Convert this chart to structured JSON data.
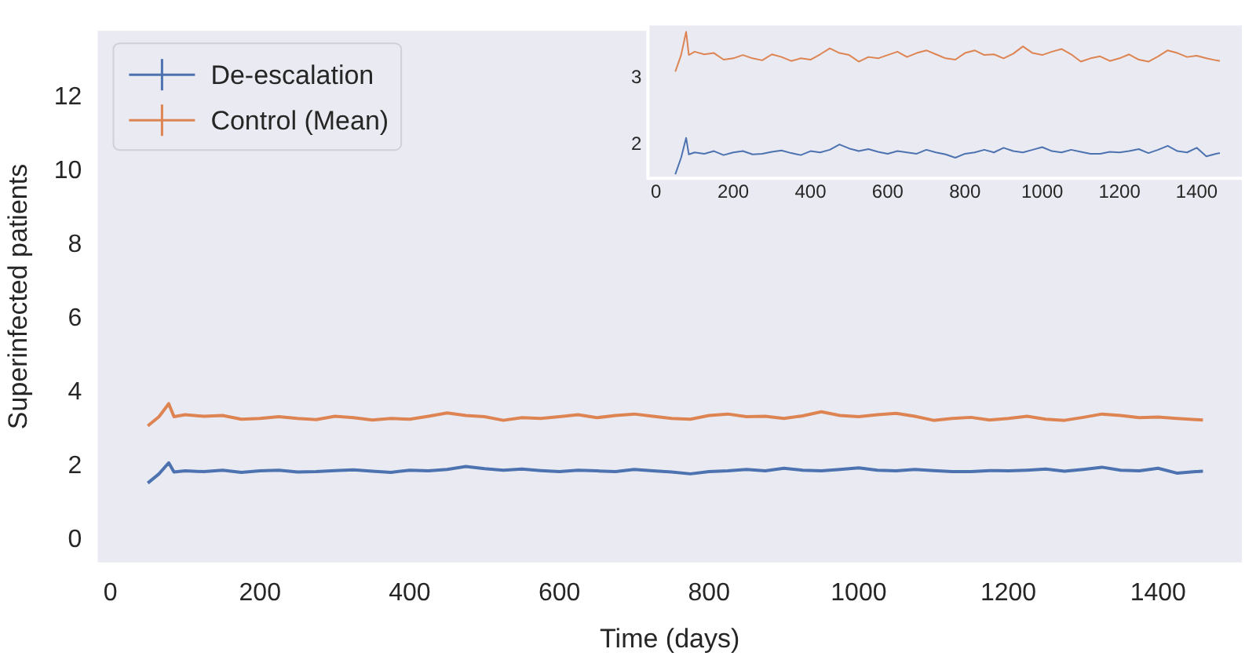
{
  "chart_data": [
    {
      "type": "line",
      "xlabel": "Time (days)",
      "ylabel": "Superinfected patients",
      "xlim": [
        -17,
        1512
      ],
      "ylim": [
        -0.6,
        13.8
      ],
      "xticks": [
        0,
        200,
        400,
        600,
        800,
        1000,
        1200,
        1400
      ],
      "yticks": [
        0,
        2,
        4,
        6,
        8,
        10,
        12
      ],
      "legend": "top left",
      "marker": "none",
      "line_style": "solid",
      "x": [
        50,
        65,
        78,
        85,
        100,
        125,
        150,
        175,
        200,
        225,
        250,
        275,
        300,
        325,
        350,
        375,
        400,
        425,
        450,
        475,
        500,
        525,
        550,
        575,
        600,
        625,
        650,
        675,
        700,
        725,
        750,
        775,
        800,
        825,
        850,
        875,
        900,
        925,
        950,
        975,
        1000,
        1025,
        1050,
        1075,
        1100,
        1125,
        1150,
        1175,
        1200,
        1225,
        1250,
        1275,
        1300,
        1325,
        1350,
        1375,
        1400,
        1425,
        1450,
        1460
      ],
      "series": [
        {
          "name": "De-escalation",
          "color": "#4c72b0",
          "values": [
            1.55,
            1.8,
            2.1,
            1.85,
            1.88,
            1.86,
            1.9,
            1.84,
            1.88,
            1.9,
            1.85,
            1.86,
            1.89,
            1.91,
            1.87,
            1.84,
            1.9,
            1.88,
            1.92,
            2.0,
            1.94,
            1.9,
            1.93,
            1.89,
            1.86,
            1.9,
            1.88,
            1.86,
            1.92,
            1.88,
            1.85,
            1.8,
            1.86,
            1.88,
            1.92,
            1.88,
            1.95,
            1.9,
            1.88,
            1.92,
            1.96,
            1.9,
            1.88,
            1.92,
            1.89,
            1.86,
            1.86,
            1.89,
            1.88,
            1.9,
            1.93,
            1.87,
            1.92,
            1.98,
            1.9,
            1.88,
            1.95,
            1.82,
            1.86,
            1.87
          ]
        },
        {
          "name": "Control (Mean)",
          "color": "#dd8452",
          "values": [
            3.1,
            3.35,
            3.7,
            3.35,
            3.4,
            3.36,
            3.38,
            3.28,
            3.3,
            3.35,
            3.3,
            3.27,
            3.36,
            3.32,
            3.26,
            3.3,
            3.28,
            3.36,
            3.45,
            3.38,
            3.35,
            3.25,
            3.32,
            3.3,
            3.35,
            3.4,
            3.32,
            3.38,
            3.42,
            3.36,
            3.3,
            3.28,
            3.38,
            3.42,
            3.35,
            3.36,
            3.3,
            3.37,
            3.48,
            3.38,
            3.35,
            3.4,
            3.44,
            3.36,
            3.25,
            3.3,
            3.33,
            3.26,
            3.3,
            3.36,
            3.28,
            3.25,
            3.33,
            3.42,
            3.38,
            3.32,
            3.34,
            3.3,
            3.27,
            3.26
          ]
        }
      ]
    },
    {
      "type": "line",
      "xlim": [
        -21,
        1521
      ],
      "ylim": [
        1.49,
        3.82
      ],
      "xticks": [
        0,
        200,
        400,
        600,
        800,
        1000,
        1200,
        1400
      ],
      "yticks": [
        2,
        3
      ],
      "marker": "none",
      "line_style": "solid",
      "x": [
        50,
        65,
        78,
        85,
        100,
        125,
        150,
        175,
        200,
        225,
        250,
        275,
        300,
        325,
        350,
        375,
        400,
        425,
        450,
        475,
        500,
        525,
        550,
        575,
        600,
        625,
        650,
        675,
        700,
        725,
        750,
        775,
        800,
        825,
        850,
        875,
        900,
        925,
        950,
        975,
        1000,
        1025,
        1050,
        1075,
        1100,
        1125,
        1150,
        1175,
        1200,
        1225,
        1250,
        1275,
        1300,
        1325,
        1350,
        1375,
        1400,
        1425,
        1450,
        1460
      ],
      "series": [
        {
          "color": "#4c72b0",
          "values": [
            1.55,
            1.8,
            2.1,
            1.85,
            1.88,
            1.86,
            1.9,
            1.84,
            1.88,
            1.9,
            1.85,
            1.86,
            1.89,
            1.91,
            1.87,
            1.84,
            1.9,
            1.88,
            1.92,
            2.0,
            1.94,
            1.9,
            1.93,
            1.89,
            1.86,
            1.9,
            1.88,
            1.86,
            1.92,
            1.88,
            1.85,
            1.8,
            1.86,
            1.88,
            1.92,
            1.88,
            1.95,
            1.9,
            1.88,
            1.92,
            1.96,
            1.9,
            1.88,
            1.92,
            1.89,
            1.86,
            1.86,
            1.89,
            1.88,
            1.9,
            1.93,
            1.87,
            1.92,
            1.98,
            1.9,
            1.88,
            1.95,
            1.82,
            1.86,
            1.87
          ]
        },
        {
          "color": "#dd8452",
          "values": [
            3.1,
            3.35,
            3.7,
            3.35,
            3.4,
            3.36,
            3.38,
            3.28,
            3.3,
            3.35,
            3.3,
            3.27,
            3.36,
            3.32,
            3.26,
            3.3,
            3.28,
            3.36,
            3.45,
            3.38,
            3.35,
            3.25,
            3.32,
            3.3,
            3.35,
            3.4,
            3.32,
            3.38,
            3.42,
            3.36,
            3.3,
            3.28,
            3.38,
            3.42,
            3.35,
            3.36,
            3.3,
            3.37,
            3.48,
            3.38,
            3.35,
            3.4,
            3.44,
            3.36,
            3.25,
            3.3,
            3.33,
            3.26,
            3.3,
            3.36,
            3.28,
            3.25,
            3.33,
            3.42,
            3.38,
            3.32,
            3.34,
            3.3,
            3.27,
            3.26
          ]
        }
      ]
    }
  ]
}
